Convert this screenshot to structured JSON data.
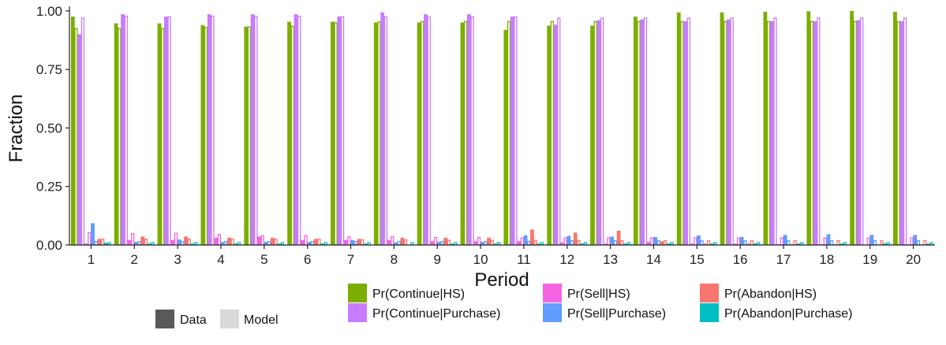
{
  "chart_data": {
    "type": "bar",
    "title": "",
    "xlabel": "Period",
    "ylabel": "Fraction",
    "ylim": [
      0,
      1.02
    ],
    "yticks": [
      "0.00",
      "0.25",
      "0.50",
      "0.75",
      "1.00"
    ],
    "ytick_values": [
      0,
      0.25,
      0.5,
      0.75,
      1.0
    ],
    "grid": false,
    "categories": [
      "1",
      "2",
      "3",
      "4",
      "5",
      "6",
      "7",
      "8",
      "9",
      "10",
      "11",
      "12",
      "13",
      "14",
      "15",
      "16",
      "17",
      "18",
      "19",
      "20"
    ],
    "fill_legend": [
      {
        "label": "Data",
        "color": "#595959"
      },
      {
        "label": "Model",
        "color": "#d9d9d9"
      }
    ],
    "series": [
      {
        "name": "Pr(Continue|HS)",
        "color": "#7cae00",
        "data": [
          0.975,
          0.946,
          0.946,
          0.939,
          0.932,
          0.953,
          0.953,
          0.95,
          0.95,
          0.95,
          0.918,
          0.936,
          0.936,
          0.975,
          0.993,
          0.993,
          0.996,
          0.998,
          0.999,
          0.996
        ],
        "model": [
          0.925,
          0.925,
          0.925,
          0.93,
          0.932,
          0.935,
          0.95,
          0.953,
          0.955,
          0.955,
          0.955,
          0.955,
          0.955,
          0.955,
          0.955,
          0.955,
          0.955,
          0.955,
          0.955,
          0.955
        ]
      },
      {
        "name": "Pr(Continue|Purchase)",
        "color": "#c77cff",
        "data": [
          0.9,
          0.985,
          0.975,
          0.985,
          0.985,
          0.985,
          0.975,
          0.993,
          0.985,
          0.985,
          0.975,
          0.94,
          0.96,
          0.963,
          0.955,
          0.963,
          0.955,
          0.955,
          0.96,
          0.955
        ],
        "model": [
          0.97,
          0.978,
          0.975,
          0.977,
          0.977,
          0.977,
          0.975,
          0.975,
          0.975,
          0.975,
          0.975,
          0.97,
          0.97,
          0.97,
          0.97,
          0.97,
          0.97,
          0.97,
          0.97,
          0.97
        ]
      },
      {
        "name": "Pr(Sell|HS)",
        "color": "#f564e3",
        "data": [
          0.005,
          0.02,
          0.02,
          0.03,
          0.035,
          0.02,
          0.02,
          0.02,
          0.015,
          0.015,
          0.015,
          0.01,
          0.005,
          0.012,
          0.005,
          0.005,
          0.003,
          0.002,
          0.001,
          0.002
        ],
        "model": [
          0.052,
          0.048,
          0.05,
          0.045,
          0.04,
          0.04,
          0.035,
          0.035,
          0.032,
          0.032,
          0.03,
          0.03,
          0.03,
          0.03,
          0.03,
          0.03,
          0.03,
          0.03,
          0.03,
          0.03
        ]
      },
      {
        "name": "Pr(Sell|Purchase)",
        "color": "#619cff",
        "data": [
          0.092,
          0.012,
          0.022,
          0.012,
          0.012,
          0.012,
          0.02,
          0.01,
          0.012,
          0.012,
          0.04,
          0.038,
          0.035,
          0.033,
          0.04,
          0.033,
          0.042,
          0.045,
          0.042,
          0.042
        ],
        "model": [
          0.015,
          0.015,
          0.015,
          0.015,
          0.015,
          0.015,
          0.015,
          0.015,
          0.015,
          0.015,
          0.015,
          0.018,
          0.018,
          0.018,
          0.018,
          0.018,
          0.018,
          0.018,
          0.018,
          0.018
        ]
      },
      {
        "name": "Pr(Abandon|HS)",
        "color": "#f8766d",
        "data": [
          0.025,
          0.035,
          0.035,
          0.03,
          0.03,
          0.025,
          0.025,
          0.03,
          0.03,
          0.03,
          0.065,
          0.052,
          0.06,
          0.015,
          0.005,
          0.005,
          0.003,
          0.002,
          0.001,
          0.002
        ],
        "model": [
          0.025,
          0.025,
          0.025,
          0.025,
          0.025,
          0.025,
          0.022,
          0.022,
          0.02,
          0.02,
          0.02,
          0.018,
          0.018,
          0.018,
          0.018,
          0.018,
          0.018,
          0.018,
          0.018,
          0.018
        ]
      },
      {
        "name": "Pr(Abandon|Purchase)",
        "color": "#00bfc4",
        "data": [
          0.008,
          0.005,
          0.005,
          0.005,
          0.005,
          0.005,
          0.005,
          0.0,
          0.005,
          0.005,
          0.005,
          0.005,
          0.005,
          0.005,
          0.005,
          0.005,
          0.005,
          0.005,
          0.005,
          0.005
        ],
        "model": [
          0.01,
          0.01,
          0.01,
          0.01,
          0.01,
          0.01,
          0.01,
          0.01,
          0.01,
          0.01,
          0.01,
          0.01,
          0.01,
          0.01,
          0.01,
          0.01,
          0.01,
          0.01,
          0.01,
          0.01
        ]
      }
    ]
  }
}
